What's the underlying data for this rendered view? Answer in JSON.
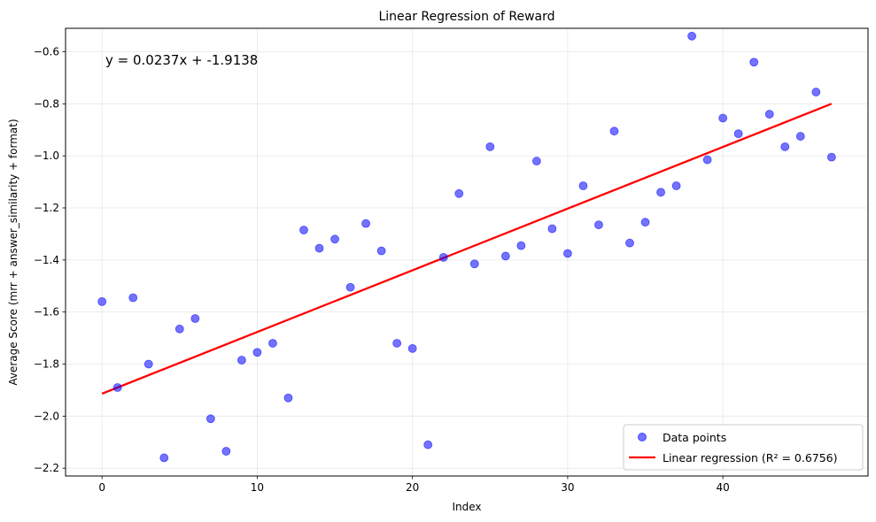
{
  "chart_data": {
    "type": "scatter",
    "title": "Linear Regression of Reward",
    "xlabel": "Index",
    "ylabel": "Average Score (mrr + answer_similarity + format)",
    "xlim": [
      -2.35,
      49.35
    ],
    "ylim": [
      -2.23,
      -0.51
    ],
    "xticks": [
      0,
      10,
      20,
      30,
      40
    ],
    "yticks": [
      -2.2,
      -2.0,
      -1.8,
      -1.6,
      -1.4,
      -1.2,
      -1.0,
      -0.8,
      -0.6
    ],
    "grid": true,
    "legend_position": "lower-right",
    "equation_text": "y = 0.0237x + -1.9138",
    "series": [
      {
        "name": "Data points",
        "kind": "scatter",
        "color": "#0000ff",
        "x": [
          0,
          1,
          2,
          3,
          4,
          5,
          6,
          7,
          8,
          9,
          10,
          11,
          12,
          13,
          14,
          15,
          16,
          17,
          18,
          19,
          20,
          21,
          22,
          23,
          24,
          25,
          26,
          27,
          28,
          29,
          30,
          31,
          32,
          33,
          34,
          35,
          36,
          37,
          38,
          39,
          40,
          41,
          42,
          43,
          44,
          45,
          46,
          47
        ],
        "y": [
          -1.56,
          -1.89,
          -1.545,
          -1.8,
          -2.16,
          -1.665,
          -1.625,
          -2.01,
          -2.135,
          -1.785,
          -1.755,
          -1.72,
          -1.93,
          -1.285,
          -1.355,
          -1.32,
          -1.505,
          -1.26,
          -1.365,
          -1.72,
          -1.74,
          -2.11,
          -1.39,
          -1.145,
          -1.415,
          -0.965,
          -1.385,
          -1.345,
          -1.02,
          -1.28,
          -1.375,
          -1.115,
          -1.265,
          -0.905,
          -1.335,
          -1.255,
          -1.14,
          -1.115,
          -0.54,
          -1.015,
          -0.855,
          -0.915,
          -0.64,
          -0.84,
          -0.965,
          -0.925,
          -0.755,
          -1.005
        ]
      },
      {
        "name": "Linear regression (R² = 0.6756)",
        "kind": "line",
        "color": "#ff0000",
        "slope": 0.0237,
        "intercept": -1.9138,
        "x": [
          0,
          47
        ]
      }
    ]
  }
}
